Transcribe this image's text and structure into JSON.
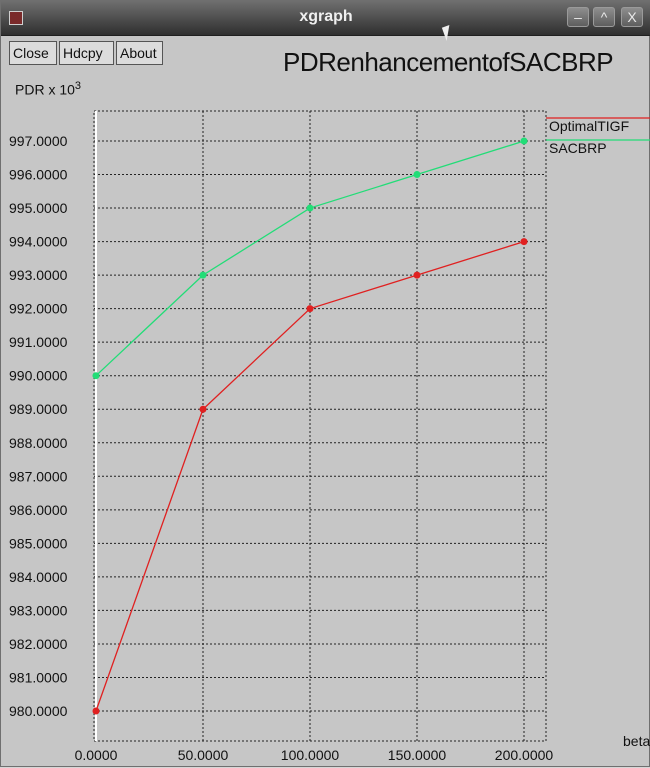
{
  "window": {
    "title": "xgraph"
  },
  "toolbar": {
    "close_label": "Close",
    "hdcpy_label": "Hdcpy",
    "about_label": "About"
  },
  "window_controls": {
    "minimize": "–",
    "maximize": "^",
    "close": "X"
  },
  "chart_data": {
    "type": "line",
    "title": "PDRenhancementofSACBRP",
    "ylabel": "PDR x 10",
    "ylabel_exponent": "3",
    "xlabel": "beta",
    "x": [
      0,
      50,
      100,
      150,
      200
    ],
    "xticks": [
      "0.0000",
      "50.0000",
      "100.0000",
      "150.0000",
      "200.0000"
    ],
    "yticks": [
      "997.0000",
      "996.0000",
      "995.0000",
      "994.0000",
      "993.0000",
      "992.0000",
      "991.0000",
      "990.0000",
      "989.0000",
      "988.0000",
      "987.0000",
      "986.0000",
      "985.0000",
      "984.0000",
      "983.0000",
      "982.0000",
      "981.0000",
      "980.0000"
    ],
    "ylim": [
      980,
      997
    ],
    "xlim": [
      0,
      200
    ],
    "grid": true,
    "legend_position": "top-right",
    "series": [
      {
        "name": "OptimalTIGF",
        "color": "#e02020",
        "values": [
          980,
          989,
          992,
          993,
          994
        ]
      },
      {
        "name": "SACBRP",
        "color": "#22dd77",
        "values": [
          990,
          993,
          995,
          996,
          997
        ]
      }
    ]
  }
}
